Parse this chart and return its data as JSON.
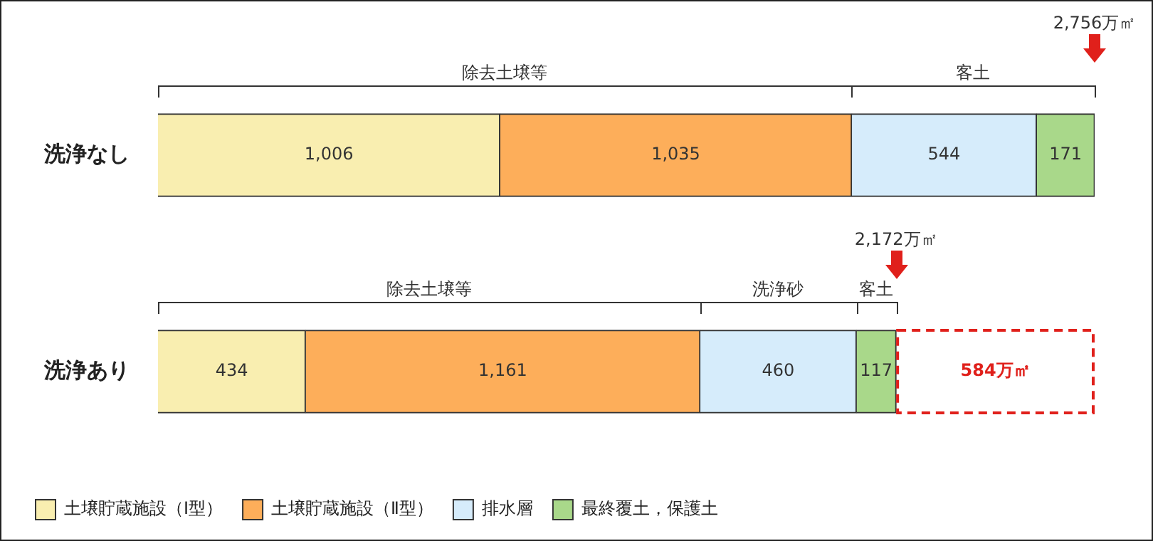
{
  "chart_data": {
    "type": "bar",
    "orientation": "horizontal",
    "stacked": true,
    "categories": [
      "洗浄なし",
      "洗浄あり"
    ],
    "series": [
      {
        "name": "土壌貯蔵施設（Ⅰ型）",
        "color": "#f9eeb0",
        "values": [
          1006,
          434
        ],
        "value_labels": [
          "1,006",
          "434"
        ]
      },
      {
        "name": "土壌貯蔵施設（Ⅱ型）",
        "color": "#fdae5a",
        "values": [
          1035,
          1161
        ],
        "value_labels": [
          "1,035",
          "1,161"
        ]
      },
      {
        "name": "排水層",
        "color": "#d6ecfb",
        "values": [
          544,
          460
        ],
        "value_labels": [
          "544",
          "460"
        ]
      },
      {
        "name": "最終覆土，保護土",
        "color": "#a9d88a",
        "values": [
          171,
          117
        ],
        "value_labels": [
          "171",
          "117"
        ]
      },
      {
        "color": "#e0201b",
        "values": [
          null,
          584
        ],
        "value_labels": [
          null,
          "584万㎡"
        ],
        "line_style": "dashed"
      }
    ],
    "xlim": [
      0,
      2756
    ],
    "tick_labels": "y",
    "legend": "bottom left",
    "annotations": [
      "除去土壌等",
      "客土",
      "2,756万㎡",
      "除去土壌等",
      "洗浄砂",
      "客土",
      "2,172万㎡"
    ]
  }
}
